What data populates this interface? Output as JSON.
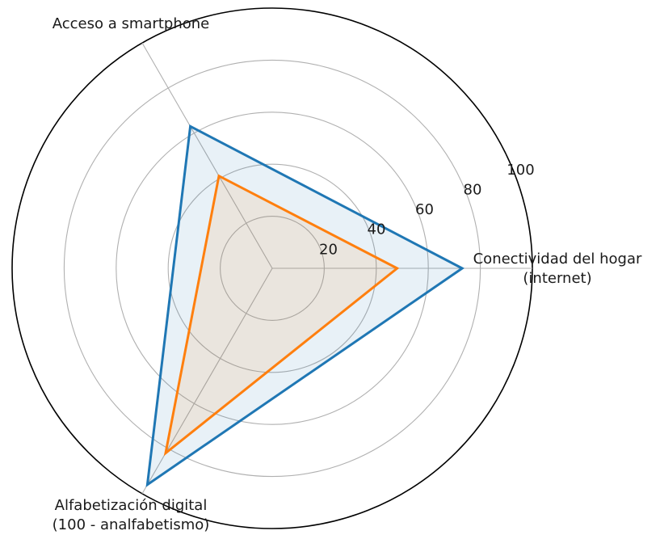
{
  "chart_data": {
    "type": "radar",
    "axes": [
      [
        "Conectividad del hogar",
        "(internet)"
      ],
      [
        "Acceso a smartphone"
      ],
      [
        "Alfabetización digital",
        "(100 - analfabetismo)"
      ]
    ],
    "r_ticks": [
      "20",
      "40",
      "60",
      "80",
      "100"
    ],
    "r_range": [
      0,
      100
    ],
    "grid": true,
    "series": [
      {
        "values": [
          73,
          63,
          96
        ],
        "color": "#1f77b4",
        "fill": "#1f77b4"
      },
      {
        "values": [
          48,
          41,
          82
        ],
        "color": "#ff7f0e",
        "fill": "#ff7f0e"
      }
    ]
  }
}
